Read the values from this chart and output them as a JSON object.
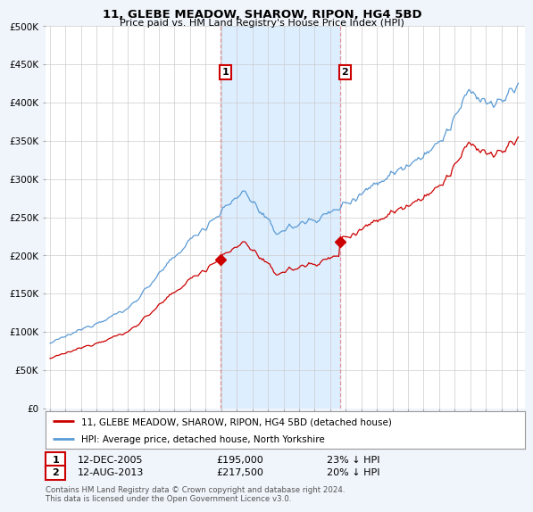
{
  "title": "11, GLEBE MEADOW, SHAROW, RIPON, HG4 5BD",
  "subtitle": "Price paid vs. HM Land Registry's House Price Index (HPI)",
  "ylabel_vals": [
    "£0",
    "£50K",
    "£100K",
    "£150K",
    "£200K",
    "£250K",
    "£300K",
    "£350K",
    "£400K",
    "£450K",
    "£500K"
  ],
  "yticks": [
    0,
    50000,
    100000,
    150000,
    200000,
    250000,
    300000,
    350000,
    400000,
    450000,
    500000
  ],
  "ylim": [
    0,
    500000
  ],
  "hpi_color": "#5b9bd5",
  "property_color": "#cc0000",
  "sale1_date": 2005.95,
  "sale1_price": 195000,
  "sale2_date": 2013.62,
  "sale2_price": 217500,
  "legend1": "11, GLEBE MEADOW, SHAROW, RIPON, HG4 5BD (detached house)",
  "legend2": "HPI: Average price, detached house, North Yorkshire",
  "footer": "Contains HM Land Registry data © Crown copyright and database right 2024.\nThis data is licensed under the Open Government Licence v3.0.",
  "bg_color": "#f0f5fb",
  "plot_bg": "#ffffff",
  "grid_color": "#cccccc",
  "shade_color": "#ddeeff"
}
